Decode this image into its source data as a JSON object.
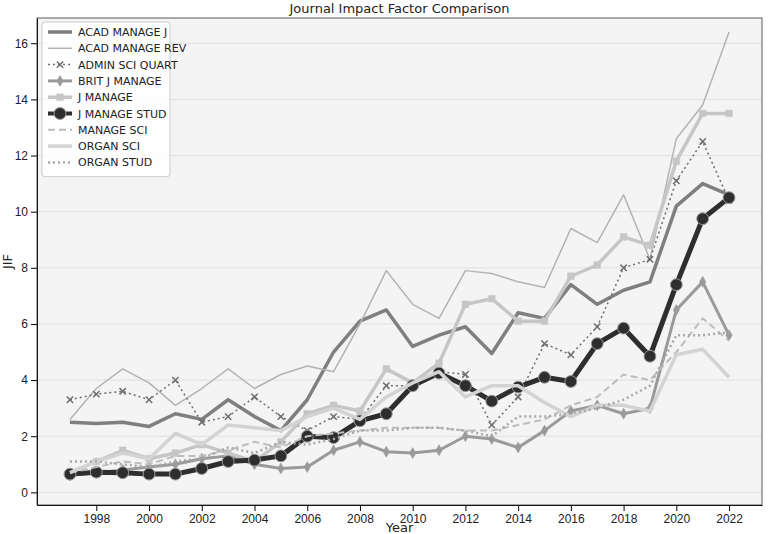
{
  "chart_data": {
    "type": "line",
    "title": "Journal Impact Factor Comparison",
    "x_label": "Year",
    "y_label": "JIF",
    "x": [
      1997,
      1998,
      1999,
      2000,
      2001,
      2002,
      2003,
      2004,
      2005,
      2006,
      2007,
      2008,
      2009,
      2010,
      2011,
      2012,
      2013,
      2014,
      2015,
      2016,
      2017,
      2018,
      2019,
      2020,
      2021,
      2022
    ],
    "xlim": [
      1995.75,
      2023.25
    ],
    "xticks": [
      1998,
      2000,
      2002,
      2004,
      2006,
      2008,
      2010,
      2012,
      2014,
      2016,
      2018,
      2020,
      2022
    ],
    "ylim": [
      -0.45,
      16.9
    ],
    "yticks": [
      0,
      2,
      4,
      6,
      8,
      10,
      12,
      14,
      16
    ],
    "grid": true,
    "legend": "upper left",
    "series": [
      {
        "name": "ACAD MANAGE J",
        "color": "#7f7f7f",
        "line_style": "solid",
        "values": [
          2.5,
          2.45,
          2.5,
          2.35,
          2.8,
          2.6,
          3.3,
          2.7,
          2.2,
          3.3,
          5.0,
          6.1,
          6.5,
          5.2,
          5.6,
          5.9,
          4.95,
          6.4,
          6.2,
          7.4,
          6.7,
          7.2,
          7.5,
          10.2,
          11.0,
          10.6
        ]
      },
      {
        "name": "ACAD MANAGE REV",
        "color": "#b3b3b3",
        "line_style": "solid",
        "values": [
          2.6,
          3.7,
          4.4,
          3.9,
          3.1,
          3.7,
          4.4,
          3.7,
          4.2,
          4.5,
          4.3,
          6.0,
          7.9,
          6.7,
          6.2,
          7.9,
          7.8,
          7.5,
          7.3,
          9.4,
          8.9,
          10.6,
          8.3,
          12.6,
          13.8,
          16.4
        ]
      },
      {
        "name": "ADMIN SCI QUART",
        "color": "#6e6e6e",
        "line_style": "dotted",
        "marker": "x",
        "values": [
          3.3,
          3.5,
          3.6,
          3.3,
          4.0,
          2.5,
          2.7,
          3.4,
          2.7,
          2.2,
          2.7,
          2.6,
          3.8,
          3.8,
          4.3,
          4.2,
          2.4,
          3.4,
          5.3,
          4.9,
          5.9,
          8.0,
          8.3,
          11.1,
          12.5,
          10.4
        ]
      },
      {
        "name": "BRIT J MANAGE",
        "color": "#9a9a9a",
        "line_style": "solid",
        "marker": "diamond",
        "values": [
          0.6,
          0.7,
          0.8,
          0.9,
          1.0,
          1.2,
          1.3,
          1.0,
          0.85,
          0.9,
          1.5,
          1.8,
          1.45,
          1.4,
          1.5,
          2.0,
          1.9,
          1.6,
          2.2,
          2.9,
          3.1,
          2.8,
          3.0,
          6.5,
          7.5,
          5.6
        ]
      },
      {
        "name": "J MANAGE",
        "color": "#c6c6c6",
        "line_style": "solid",
        "marker": "square",
        "values": [
          0.7,
          1.1,
          1.5,
          1.2,
          1.4,
          1.7,
          1.4,
          1.1,
          1.8,
          2.8,
          3.1,
          2.9,
          4.4,
          3.9,
          4.6,
          6.7,
          6.9,
          6.1,
          6.1,
          7.7,
          8.1,
          9.1,
          8.8,
          11.8,
          13.5,
          13.5
        ]
      },
      {
        "name": "J MANAGE STUD",
        "color": "#2e2e2e",
        "line_style": "solid",
        "marker": "circle",
        "values": [
          0.65,
          0.72,
          0.7,
          0.65,
          0.65,
          0.85,
          1.1,
          1.15,
          1.3,
          2.0,
          1.95,
          2.55,
          2.8,
          3.8,
          4.25,
          3.8,
          3.25,
          3.75,
          4.1,
          3.95,
          5.3,
          5.85,
          4.85,
          7.4,
          9.75,
          10.5
        ]
      },
      {
        "name": "MANAGE SCI",
        "color": "#bdbdbd",
        "line_style": "dashed",
        "values": [
          0.7,
          0.9,
          1.1,
          1.0,
          1.3,
          1.3,
          1.5,
          1.8,
          1.6,
          2.0,
          2.1,
          2.2,
          2.3,
          2.3,
          2.3,
          2.2,
          2.2,
          2.4,
          2.6,
          3.1,
          3.4,
          4.2,
          4.0,
          5.0,
          6.2,
          5.4
        ]
      },
      {
        "name": "ORGAN SCI",
        "color": "#d3d3d3",
        "line_style": "solid",
        "values": [
          0.7,
          1.1,
          1.4,
          1.2,
          2.1,
          1.7,
          2.4,
          2.3,
          2.2,
          2.7,
          3.0,
          2.6,
          3.4,
          3.9,
          4.3,
          3.4,
          3.8,
          3.8,
          3.2,
          2.7,
          3.1,
          3.1,
          2.9,
          4.9,
          5.1,
          4.1
        ]
      },
      {
        "name": "ORGAN STUD",
        "color": "#a8a8a8",
        "line_style": "dotted",
        "values": [
          1.1,
          1.1,
          1.0,
          0.9,
          1.1,
          1.2,
          1.6,
          1.4,
          1.8,
          1.7,
          1.9,
          2.2,
          2.2,
          2.3,
          2.3,
          2.2,
          2.0,
          2.7,
          2.7,
          2.8,
          3.0,
          3.3,
          3.8,
          5.6,
          5.6,
          5.7
        ]
      }
    ]
  }
}
